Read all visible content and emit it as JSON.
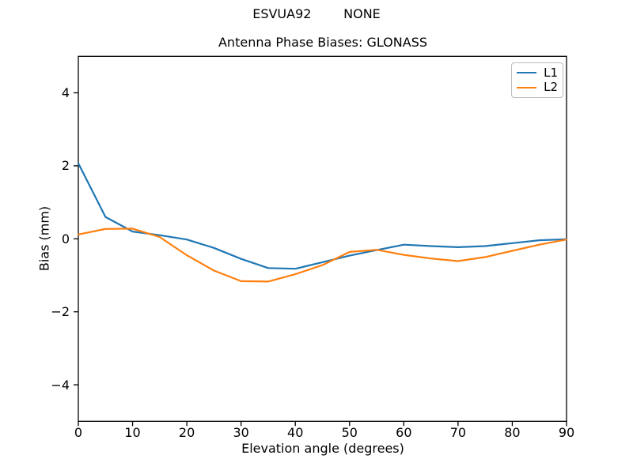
{
  "figure": {
    "suptitle": "ESVUA92        NONE",
    "background": "#ffffff"
  },
  "chart_data": {
    "type": "line",
    "title": "Antenna Phase Biases: GLONASS",
    "xlabel": "Elevation angle (degrees)",
    "ylabel": "Bias (mm)",
    "xlim": [
      0,
      90
    ],
    "ylim": [
      -5,
      5
    ],
    "grid": false,
    "legend_position": "upper right",
    "x": [
      0,
      5,
      10,
      15,
      20,
      25,
      30,
      35,
      40,
      45,
      50,
      55,
      60,
      65,
      70,
      75,
      80,
      85,
      90
    ],
    "series": [
      {
        "name": "L1",
        "color": "#1f77b4",
        "values": [
          2.07,
          0.6,
          0.2,
          0.1,
          -0.02,
          -0.25,
          -0.55,
          -0.8,
          -0.82,
          -0.64,
          -0.46,
          -0.31,
          -0.16,
          -0.2,
          -0.23,
          -0.2,
          -0.12,
          -0.04,
          -0.01
        ]
      },
      {
        "name": "L2",
        "color": "#ff7f0e",
        "values": [
          0.12,
          0.27,
          0.28,
          0.05,
          -0.45,
          -0.87,
          -1.16,
          -1.17,
          -0.97,
          -0.72,
          -0.36,
          -0.3,
          -0.44,
          -0.54,
          -0.61,
          -0.5,
          -0.33,
          -0.16,
          -0.02
        ]
      }
    ],
    "xticks": {
      "values": [
        0,
        10,
        20,
        30,
        40,
        50,
        60,
        70,
        80,
        90
      ],
      "labels": [
        "0",
        "10",
        "20",
        "30",
        "40",
        "50",
        "60",
        "70",
        "80",
        "90"
      ]
    },
    "yticks": {
      "values": [
        -4,
        -2,
        0,
        2,
        4
      ],
      "labels": [
        "−4",
        "−2",
        "0",
        "2",
        "4"
      ]
    }
  },
  "colors": {
    "axes": "#000000",
    "text": "#000000",
    "legend_border": "#bbbbbb"
  }
}
